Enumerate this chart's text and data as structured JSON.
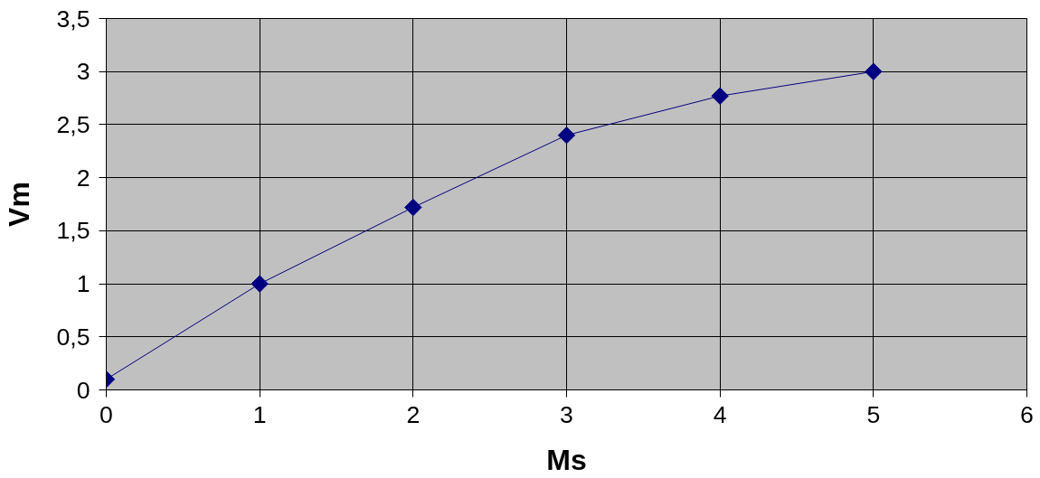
{
  "chart_data": {
    "type": "line",
    "xlabel": "Ms",
    "ylabel": "Vm",
    "x": [
      0,
      1,
      2,
      3,
      4,
      5
    ],
    "series": [
      {
        "color": "#000080",
        "values": [
          0.1,
          1.0,
          1.72,
          2.4,
          2.77,
          3.0
        ]
      }
    ],
    "xlim": [
      0,
      6
    ],
    "xticks": [
      0,
      1,
      2,
      3,
      4,
      5,
      6
    ],
    "ylim": [
      0,
      3.5
    ],
    "yticks": [
      0,
      {
        "value": 0.5,
        "label": "0,5"
      },
      1,
      {
        "value": 1.5,
        "label": "1,5"
      },
      2,
      {
        "value": 2.5,
        "label": "2,5"
      },
      3,
      {
        "value": 3.5,
        "label": "3,5"
      }
    ],
    "grid": true,
    "marker": "diamond",
    "line_style": "solid"
  }
}
